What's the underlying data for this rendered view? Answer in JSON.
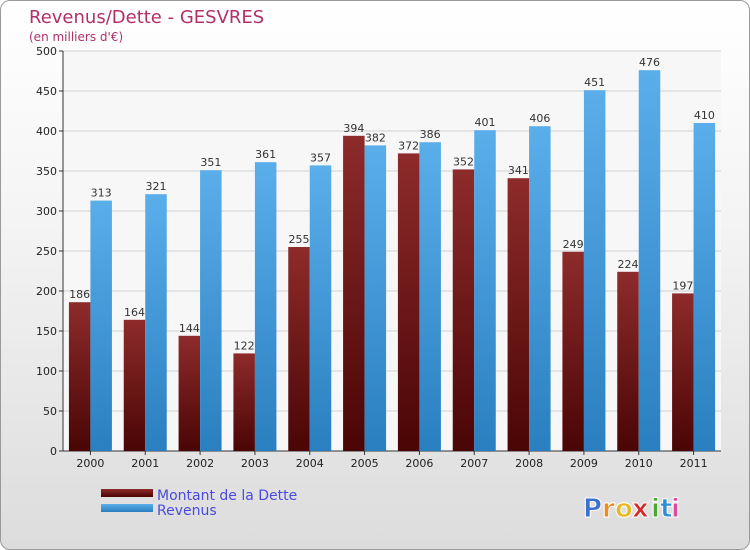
{
  "chart_data": {
    "type": "bar",
    "title": "Revenus/Dette - GESVRES",
    "subtitle": "(en milliers d'€)",
    "categories": [
      "2000",
      "2001",
      "2002",
      "2003",
      "2004",
      "2005",
      "2006",
      "2007",
      "2008",
      "2009",
      "2010",
      "2011"
    ],
    "series": [
      {
        "name": "Montant de la Dette",
        "color": "#7a1a1a",
        "values": [
          186,
          164,
          144,
          122,
          255,
          394,
          372,
          352,
          341,
          249,
          224,
          197
        ]
      },
      {
        "name": "Revenus",
        "color": "#3b9be0",
        "values": [
          313,
          321,
          351,
          361,
          357,
          382,
          386,
          401,
          406,
          451,
          476,
          410
        ]
      }
    ],
    "ylim": [
      0,
      500
    ],
    "yticks": [
      0,
      50,
      100,
      150,
      200,
      250,
      300,
      350,
      400,
      450,
      500
    ],
    "grid": true,
    "legend": "bottom-left",
    "xlabel": "",
    "ylabel": ""
  },
  "logo": {
    "text": "Proxiti",
    "letters": [
      "P",
      "r",
      "o",
      "x",
      "i",
      "t",
      "i"
    ],
    "colors": [
      "#3b6fd1",
      "#f08a1c",
      "#e8b820",
      "#d62828",
      "#4aa82f",
      "#2b8fd6",
      "#e04a9a"
    ]
  }
}
